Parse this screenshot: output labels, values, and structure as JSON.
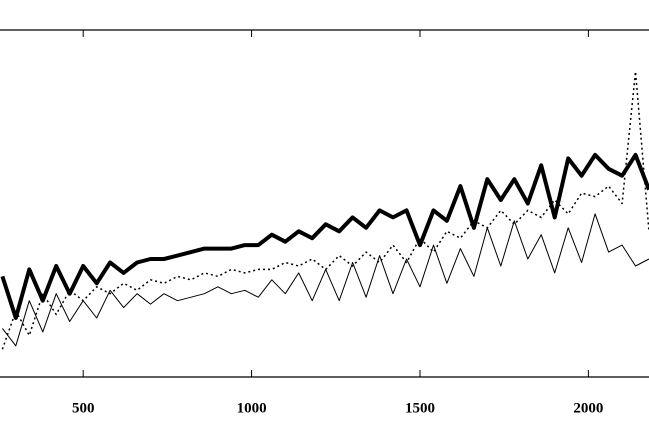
{
  "chart_data": {
    "type": "line",
    "x": [
      260,
      300,
      340,
      380,
      420,
      460,
      500,
      540,
      580,
      620,
      660,
      700,
      740,
      780,
      820,
      860,
      900,
      940,
      980,
      1020,
      1060,
      1100,
      1140,
      1180,
      1220,
      1260,
      1300,
      1340,
      1380,
      1420,
      1460,
      1500,
      1540,
      1580,
      1620,
      1660,
      1700,
      1740,
      1780,
      1820,
      1860,
      1900,
      1940,
      1980,
      2020,
      2060,
      2100,
      2140,
      2180
    ],
    "series": [
      {
        "color": "#000000",
        "style": "thick",
        "values": [
          29,
          17,
          31,
          22,
          32,
          24,
          32,
          27,
          33,
          30,
          33,
          34,
          34,
          35,
          36,
          37,
          37,
          37,
          38,
          38,
          41,
          39,
          42,
          40,
          44,
          42,
          46,
          43,
          48,
          46,
          48,
          38,
          48,
          45,
          55,
          43,
          57,
          51,
          57,
          50,
          61,
          46,
          63,
          58,
          64,
          60,
          58,
          64,
          54
        ]
      },
      {
        "color": "#000000",
        "style": "dotted",
        "values": [
          8,
          19,
          12,
          24,
          18,
          25,
          22,
          26,
          24,
          27,
          25,
          28,
          27,
          29,
          28,
          30,
          29,
          31,
          30,
          31,
          31,
          33,
          32,
          34,
          31,
          35,
          32,
          36,
          33,
          38,
          33,
          40,
          36,
          42,
          40,
          45,
          43,
          48,
          44,
          48,
          46,
          51,
          47,
          53,
          52,
          55,
          50,
          88,
          42
        ]
      },
      {
        "color": "#000000",
        "style": "thin",
        "values": [
          14,
          9,
          22,
          13,
          24,
          16,
          22,
          17,
          25,
          20,
          24,
          21,
          24,
          22,
          23,
          24,
          26,
          24,
          25,
          23,
          28,
          24,
          30,
          22,
          31,
          22,
          33,
          23,
          35,
          24,
          34,
          26,
          38,
          27,
          37,
          29,
          43,
          32,
          45,
          34,
          41,
          30,
          43,
          33,
          47,
          36,
          38,
          32,
          34
        ]
      }
    ],
    "xlim": [
      253,
      2180
    ],
    "xticks": [
      500,
      1000,
      1500,
      2000
    ],
    "ylim": [
      0,
      100
    ]
  }
}
